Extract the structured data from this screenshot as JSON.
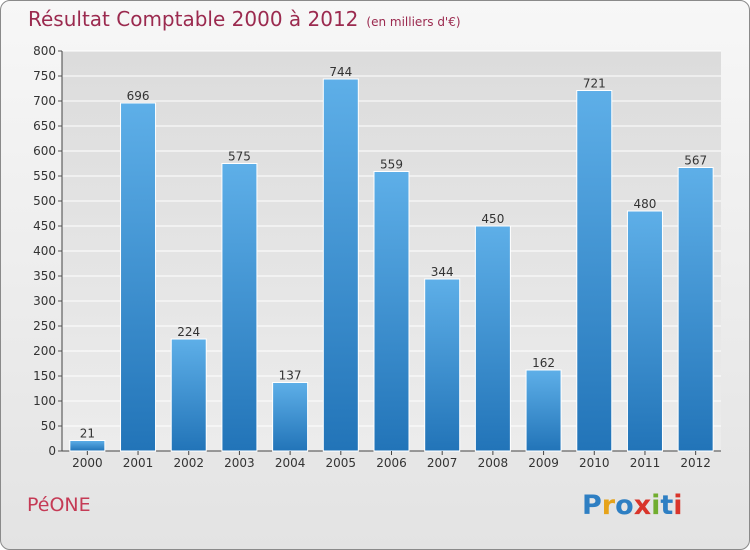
{
  "header": {
    "title": "Résultat Comptable 2000 à 2012",
    "subtitle": "(en milliers d'€)"
  },
  "footer": {
    "commune": "PéONE",
    "logo_text": "Proxiti",
    "logo_letters": [
      "P",
      "r",
      "o",
      "x",
      "i",
      "t",
      "i"
    ]
  },
  "colors": {
    "title": "#9b2a4f",
    "bar_top": "#5eafe8",
    "bar_bottom": "#2274b8",
    "grid": "#ffffff",
    "logo": [
      "#2e7fc3",
      "#e6a31a",
      "#2e7fc3",
      "#d9352b",
      "#71ad2f",
      "#2e7fc3",
      "#d9352b"
    ]
  },
  "chart_data": {
    "type": "bar",
    "title": "Résultat Comptable 2000 à 2012",
    "ylabel": "en milliers d'€",
    "categories": [
      "2000",
      "2001",
      "2002",
      "2003",
      "2004",
      "2005",
      "2006",
      "2007",
      "2008",
      "2009",
      "2010",
      "2011",
      "2012"
    ],
    "values": [
      21,
      696,
      224,
      575,
      137,
      744,
      559,
      344,
      450,
      162,
      721,
      480,
      567
    ],
    "ylim": [
      0,
      800
    ],
    "yticks": [
      0,
      50,
      100,
      150,
      200,
      250,
      300,
      350,
      400,
      450,
      500,
      550,
      600,
      650,
      700,
      750,
      800
    ],
    "grid": true
  }
}
